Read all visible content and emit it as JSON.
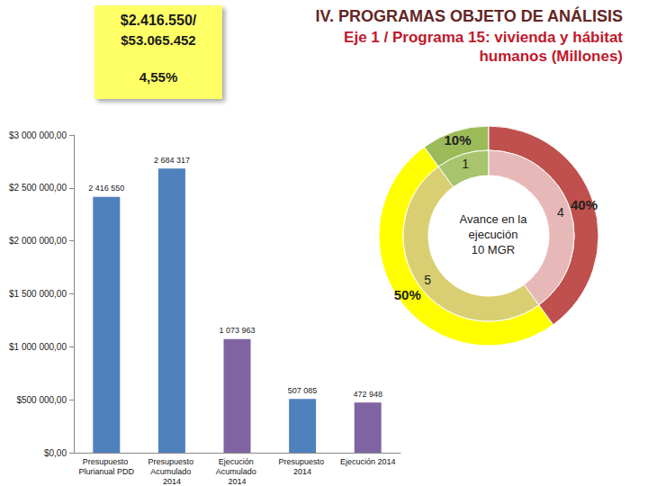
{
  "chart_data": [
    {
      "type": "bar",
      "title": "IV. PROGRAMAS OBJETO DE ANÁLISIS",
      "subtitle": "Eje 1 / Programa 15: vivienda y hábitat humanos (Millones)",
      "annotations": [
        "$2.416.550/",
        "$53.065.452",
        "4,55%"
      ],
      "categories": [
        "Presupuesto Plurianual PDD",
        "Presupuesto Acumulado 2014",
        "Ejecución Acumulado 2014",
        "Presupuesto 2014",
        "Ejecución 2014"
      ],
      "values": [
        2416550,
        2684317,
        1073963,
        507085,
        472948
      ],
      "value_labels": [
        "2 416 550",
        "2 684 317",
        "1 073 963",
        "507 085",
        "472 948"
      ],
      "colors": [
        "#4f81bd",
        "#4f81bd",
        "#8064a2",
        "#4f81bd",
        "#8064a2"
      ],
      "data_labels": true,
      "ylim": [
        0,
        3000000
      ],
      "yticks": [
        {
          "value": 0,
          "label": "$0,00"
        },
        {
          "value": 500000,
          "label": "$500 000,00"
        },
        {
          "value": 1000000,
          "label": "$1 000 000,00"
        },
        {
          "value": 1500000,
          "label": "$1 500 000,00"
        },
        {
          "value": 2000000,
          "label": "$2 000 000,00"
        },
        {
          "value": 2500000,
          "label": "$2 500 000,00"
        },
        {
          "value": 3000000,
          "label": "$3 000 000,00"
        }
      ],
      "grid": false
    },
    {
      "type": "pie",
      "title": "Avance en la ejecución 10 MGR",
      "data_labels": true,
      "series": [
        {
          "values": [
            10,
            50,
            40
          ],
          "value_labels": [
            "10%",
            "50%",
            "40%"
          ],
          "colors": [
            "#9bbb59",
            "#ffff00",
            "#c0504d"
          ]
        },
        {
          "values": [
            1,
            5,
            4
          ],
          "colors": [
            "#a8c46c",
            "#d9cf72",
            "#e6b9b8"
          ]
        }
      ]
    }
  ]
}
